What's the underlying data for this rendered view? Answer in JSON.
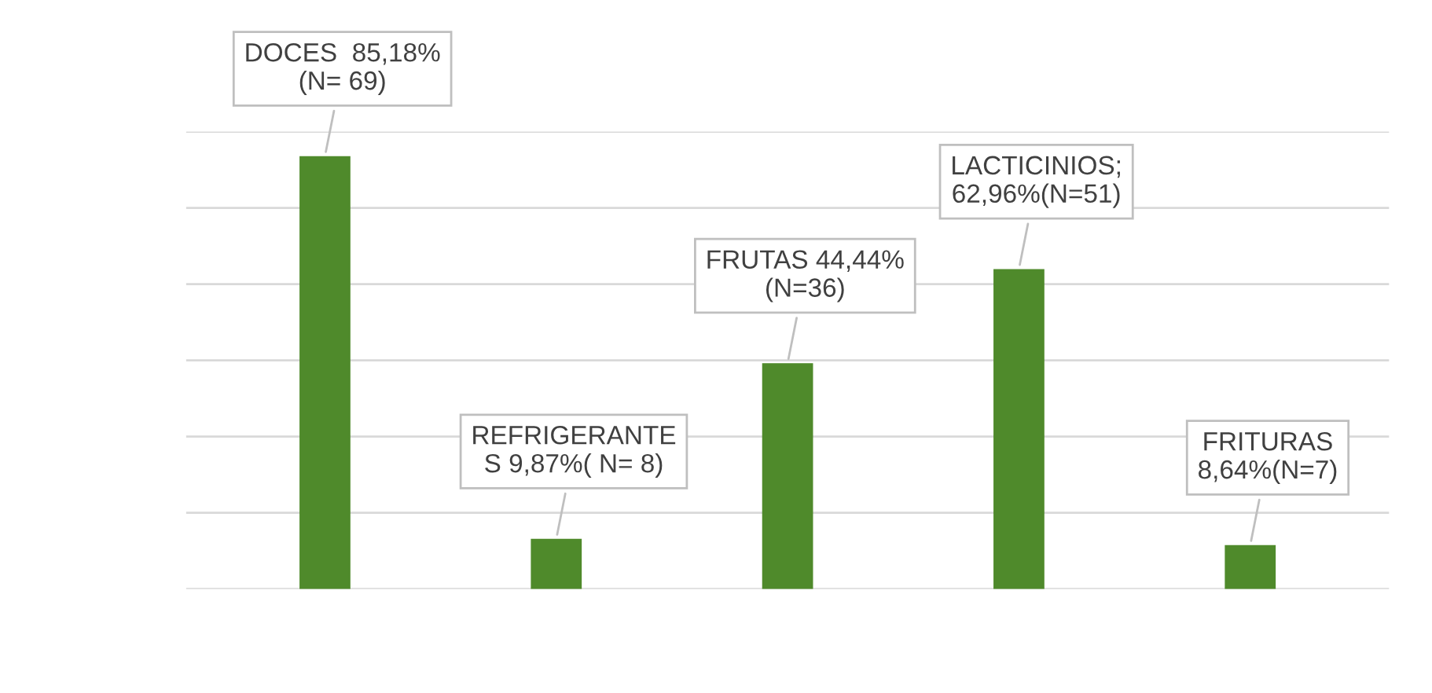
{
  "chart_data": {
    "type": "bar",
    "categories": [
      null,
      null,
      null,
      null,
      null
    ],
    "values": [
      85.18,
      9.87,
      44.44,
      62.96,
      8.64
    ],
    "value_labels": [
      "DOCES  85,18%\n(N= 69)",
      "REFRIGERANTE\nS 9,87%( N= 8)",
      "FRUTAS 44,44%\n(N=36)",
      "LACTICINIOS;\n62,96%(N=51)",
      "FRITURAS\n8,64%(N=7)"
    ],
    "color": "#4f8a2b",
    "ylim": [
      0,
      90
    ],
    "yticks": [
      {
        "value": 0,
        "label": null
      },
      {
        "value": 15,
        "label": null
      },
      {
        "value": 30,
        "label": null
      },
      {
        "value": 45,
        "label": null
      },
      {
        "value": 60,
        "label": null
      },
      {
        "value": 75,
        "label": null
      },
      {
        "value": 90,
        "label": null
      }
    ],
    "grid": "y",
    "legend": false
  }
}
